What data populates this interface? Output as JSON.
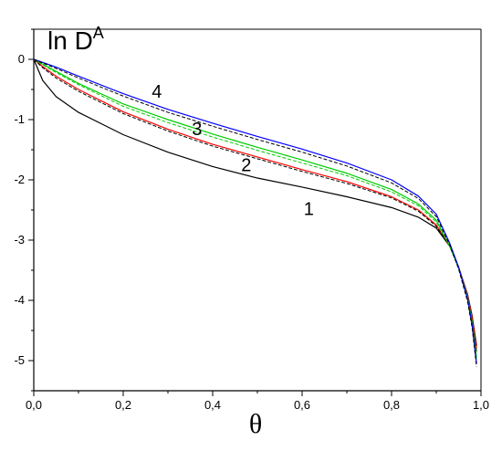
{
  "chart_data": {
    "type": "line",
    "title": "",
    "xlabel": "θ",
    "ylabel": {
      "main": "ln D",
      "sup": "A"
    },
    "xlim": [
      0.0,
      1.0
    ],
    "ylim": [
      -5.5,
      0.5
    ],
    "x_ticks": [
      {
        "value": 0.0,
        "label": "0,0"
      },
      {
        "value": 0.2,
        "label": "0,2"
      },
      {
        "value": 0.4,
        "label": "0,4"
      },
      {
        "value": 0.6,
        "label": "0,6"
      },
      {
        "value": 0.8,
        "label": "0,8"
      },
      {
        "value": 1.0,
        "label": "1,0"
      }
    ],
    "y_ticks": [
      {
        "value": 0,
        "label": "0"
      },
      {
        "value": -1,
        "label": "-1"
      },
      {
        "value": -2,
        "label": "-2"
      },
      {
        "value": -3,
        "label": "-3"
      },
      {
        "value": -4,
        "label": "-4"
      },
      {
        "value": -5,
        "label": "-5"
      }
    ],
    "grid": false,
    "legend": "none",
    "series": [
      {
        "color": "#000000",
        "dash": false,
        "points": [
          [
            0.0,
            0.0
          ],
          [
            0.02,
            -0.35
          ],
          [
            0.05,
            -0.62
          ],
          [
            0.1,
            -0.88
          ],
          [
            0.2,
            -1.25
          ],
          [
            0.3,
            -1.54
          ],
          [
            0.4,
            -1.78
          ],
          [
            0.5,
            -1.97
          ],
          [
            0.6,
            -2.12
          ],
          [
            0.7,
            -2.28
          ],
          [
            0.8,
            -2.46
          ],
          [
            0.86,
            -2.62
          ],
          [
            0.9,
            -2.8
          ],
          [
            0.93,
            -3.1
          ],
          [
            0.95,
            -3.45
          ],
          [
            0.97,
            -3.9
          ],
          [
            0.98,
            -4.25
          ],
          [
            0.99,
            -4.75
          ]
        ]
      },
      {
        "color": "#ff0000",
        "dash": false,
        "points": [
          [
            0.0,
            0.0
          ],
          [
            0.02,
            -0.12
          ],
          [
            0.05,
            -0.28
          ],
          [
            0.1,
            -0.5
          ],
          [
            0.2,
            -0.87
          ],
          [
            0.3,
            -1.16
          ],
          [
            0.4,
            -1.41
          ],
          [
            0.5,
            -1.62
          ],
          [
            0.6,
            -1.83
          ],
          [
            0.7,
            -2.03
          ],
          [
            0.8,
            -2.28
          ],
          [
            0.86,
            -2.5
          ],
          [
            0.9,
            -2.75
          ],
          [
            0.93,
            -3.1
          ],
          [
            0.95,
            -3.45
          ],
          [
            0.97,
            -3.92
          ],
          [
            0.98,
            -4.28
          ],
          [
            0.99,
            -4.8
          ]
        ]
      },
      {
        "color": "#000000",
        "dash": true,
        "points": [
          [
            0.0,
            0.0
          ],
          [
            0.02,
            -0.14
          ],
          [
            0.05,
            -0.31
          ],
          [
            0.1,
            -0.53
          ],
          [
            0.2,
            -0.9
          ],
          [
            0.3,
            -1.19
          ],
          [
            0.4,
            -1.44
          ],
          [
            0.5,
            -1.65
          ],
          [
            0.6,
            -1.86
          ],
          [
            0.7,
            -2.06
          ],
          [
            0.8,
            -2.3
          ],
          [
            0.86,
            -2.52
          ],
          [
            0.9,
            -2.77
          ],
          [
            0.93,
            -3.1
          ],
          [
            0.95,
            -3.46
          ],
          [
            0.97,
            -3.95
          ],
          [
            0.98,
            -4.32
          ],
          [
            0.99,
            -4.85
          ]
        ]
      },
      {
        "color": "#00cc00",
        "dash": false,
        "points": [
          [
            0.0,
            0.0
          ],
          [
            0.02,
            -0.08
          ],
          [
            0.05,
            -0.2
          ],
          [
            0.1,
            -0.4
          ],
          [
            0.2,
            -0.74
          ],
          [
            0.3,
            -1.0
          ],
          [
            0.4,
            -1.24
          ],
          [
            0.5,
            -1.46
          ],
          [
            0.6,
            -1.67
          ],
          [
            0.7,
            -1.89
          ],
          [
            0.8,
            -2.16
          ],
          [
            0.86,
            -2.4
          ],
          [
            0.9,
            -2.67
          ],
          [
            0.93,
            -3.1
          ],
          [
            0.95,
            -3.45
          ],
          [
            0.97,
            -3.95
          ],
          [
            0.98,
            -4.35
          ],
          [
            0.99,
            -4.95
          ]
        ]
      },
      {
        "color": "#00cc00",
        "dash": true,
        "points": [
          [
            0.0,
            0.0
          ],
          [
            0.02,
            -0.09
          ],
          [
            0.05,
            -0.22
          ],
          [
            0.1,
            -0.42
          ],
          [
            0.2,
            -0.78
          ],
          [
            0.3,
            -1.05
          ],
          [
            0.4,
            -1.29
          ],
          [
            0.5,
            -1.51
          ],
          [
            0.6,
            -1.72
          ],
          [
            0.7,
            -1.93
          ],
          [
            0.8,
            -2.2
          ],
          [
            0.86,
            -2.43
          ],
          [
            0.9,
            -2.7
          ],
          [
            0.93,
            -3.1
          ],
          [
            0.95,
            -3.47
          ],
          [
            0.97,
            -3.97
          ],
          [
            0.98,
            -4.38
          ],
          [
            0.99,
            -4.98
          ]
        ]
      },
      {
        "color": "#0000ff",
        "dash": false,
        "points": [
          [
            0.0,
            0.0
          ],
          [
            0.02,
            -0.05
          ],
          [
            0.05,
            -0.13
          ],
          [
            0.1,
            -0.28
          ],
          [
            0.2,
            -0.57
          ],
          [
            0.3,
            -0.83
          ],
          [
            0.4,
            -1.06
          ],
          [
            0.5,
            -1.28
          ],
          [
            0.6,
            -1.49
          ],
          [
            0.7,
            -1.72
          ],
          [
            0.8,
            -2.0
          ],
          [
            0.86,
            -2.27
          ],
          [
            0.9,
            -2.57
          ],
          [
            0.93,
            -3.05
          ],
          [
            0.95,
            -3.45
          ],
          [
            0.97,
            -3.98
          ],
          [
            0.98,
            -4.4
          ],
          [
            0.99,
            -5.05
          ]
        ]
      },
      {
        "color": "#000000",
        "dash": true,
        "points": [
          [
            0.0,
            0.0
          ],
          [
            0.02,
            -0.06
          ],
          [
            0.05,
            -0.15
          ],
          [
            0.1,
            -0.31
          ],
          [
            0.2,
            -0.61
          ],
          [
            0.3,
            -0.88
          ],
          [
            0.4,
            -1.11
          ],
          [
            0.5,
            -1.33
          ],
          [
            0.6,
            -1.54
          ],
          [
            0.7,
            -1.77
          ],
          [
            0.8,
            -2.05
          ],
          [
            0.86,
            -2.31
          ],
          [
            0.9,
            -2.61
          ],
          [
            0.93,
            -3.08
          ],
          [
            0.95,
            -3.48
          ],
          [
            0.97,
            -4.02
          ],
          [
            0.98,
            -4.45
          ],
          [
            0.99,
            -5.1
          ]
        ]
      }
    ],
    "annotations": [
      {
        "text": "1",
        "x": 0.615,
        "y": -2.48
      },
      {
        "text": "2",
        "x": 0.475,
        "y": -1.75
      },
      {
        "text": "3",
        "x": 0.365,
        "y": -1.15
      },
      {
        "text": "4",
        "x": 0.275,
        "y": -0.53
      }
    ]
  }
}
